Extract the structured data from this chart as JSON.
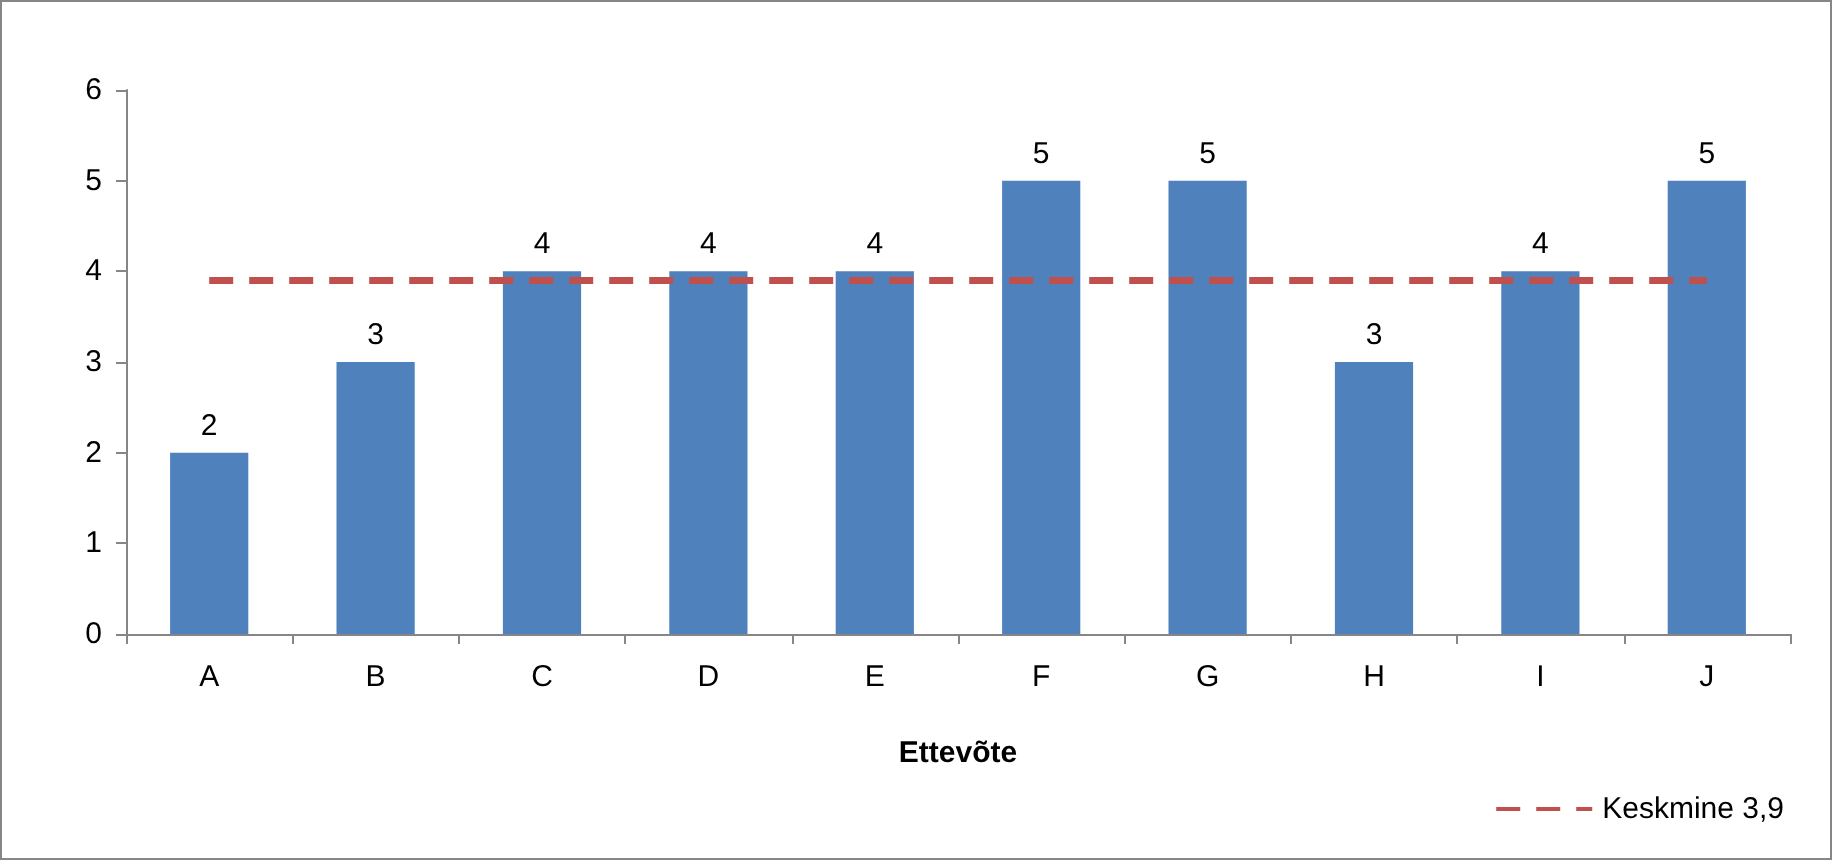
{
  "chart_data": {
    "type": "bar",
    "xlabel": "Ettevõte",
    "categories": [
      "A",
      "B",
      "C",
      "D",
      "E",
      "F",
      "G",
      "H",
      "I",
      "J"
    ],
    "series": [
      {
        "color": "#4f81bd",
        "values": [
          2,
          3,
          4,
          4,
          4,
          5,
          5,
          3,
          4,
          5
        ],
        "value_labels": [
          "2",
          "3",
          "4",
          "4",
          "4",
          "5",
          "5",
          "3",
          "4",
          "5"
        ]
      },
      {
        "type": "line",
        "name": "Keskmine 3,9",
        "color": "#c0504d",
        "values": [
          3.9,
          3.9,
          3.9,
          3.9,
          3.9,
          3.9,
          3.9,
          3.9,
          3.9,
          3.9
        ],
        "line_style": "dashed",
        "marker": "none"
      }
    ],
    "ylim": [
      0,
      6
    ],
    "yticks": [
      0,
      1,
      2,
      3,
      4,
      5,
      6
    ],
    "grid": false,
    "legend": "bottom right"
  }
}
